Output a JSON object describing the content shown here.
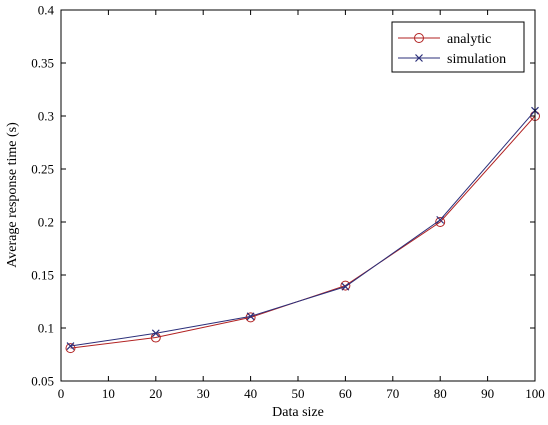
{
  "chart_data": {
    "type": "line",
    "title": "",
    "xlabel": "Data size",
    "ylabel": "Average response time (s)",
    "xlim": [
      0,
      100
    ],
    "ylim": [
      0.05,
      0.4
    ],
    "x_ticks": [
      0,
      10,
      20,
      30,
      40,
      50,
      60,
      70,
      80,
      90,
      100
    ],
    "y_ticks": [
      0.05,
      0.1,
      0.15,
      0.2,
      0.25,
      0.3,
      0.35,
      0.4
    ],
    "x_tick_labels": [
      "0",
      "10",
      "20",
      "30",
      "40",
      "50",
      "60",
      "70",
      "80",
      "90",
      "100"
    ],
    "y_tick_labels": [
      "0.05",
      "0.1",
      "0.15",
      "0.2",
      "0.25",
      "0.3",
      "0.35",
      "0.4"
    ],
    "grid": false,
    "legend_position": "top-right",
    "x": [
      2,
      20,
      40,
      60,
      80,
      100
    ],
    "series": [
      {
        "name": "analytic",
        "values": [
          0.081,
          0.091,
          0.11,
          0.14,
          0.2,
          0.3
        ],
        "color": "#b22222",
        "marker": "circle"
      },
      {
        "name": "simulation",
        "values": [
          0.083,
          0.095,
          0.111,
          0.139,
          0.202,
          0.305
        ],
        "color": "#2b2f7a",
        "marker": "x"
      }
    ]
  }
}
